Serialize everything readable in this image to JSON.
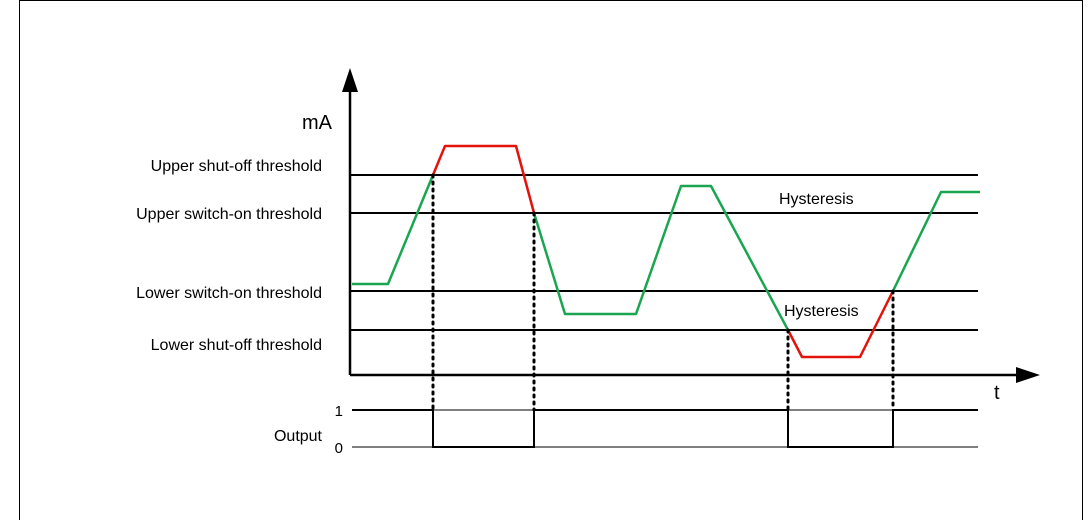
{
  "y_axis_label": "mA",
  "x_axis_label": "t",
  "thresholds": {
    "upper_shutoff": "Upper shut-off threshold",
    "upper_switchon": "Upper switch-on threshold",
    "lower_switchon": "Lower switch-on threshold",
    "lower_shutoff": "Lower shut-off threshold"
  },
  "hysteresis_upper": "Hysteresis",
  "hysteresis_lower": "Hysteresis",
  "output_label": "Output",
  "output_high": "1",
  "output_low": "0",
  "colors": {
    "signal_normal": "#1aa650",
    "signal_fault": "#e3120b",
    "lines": "#000000",
    "frame": "#000000"
  }
}
